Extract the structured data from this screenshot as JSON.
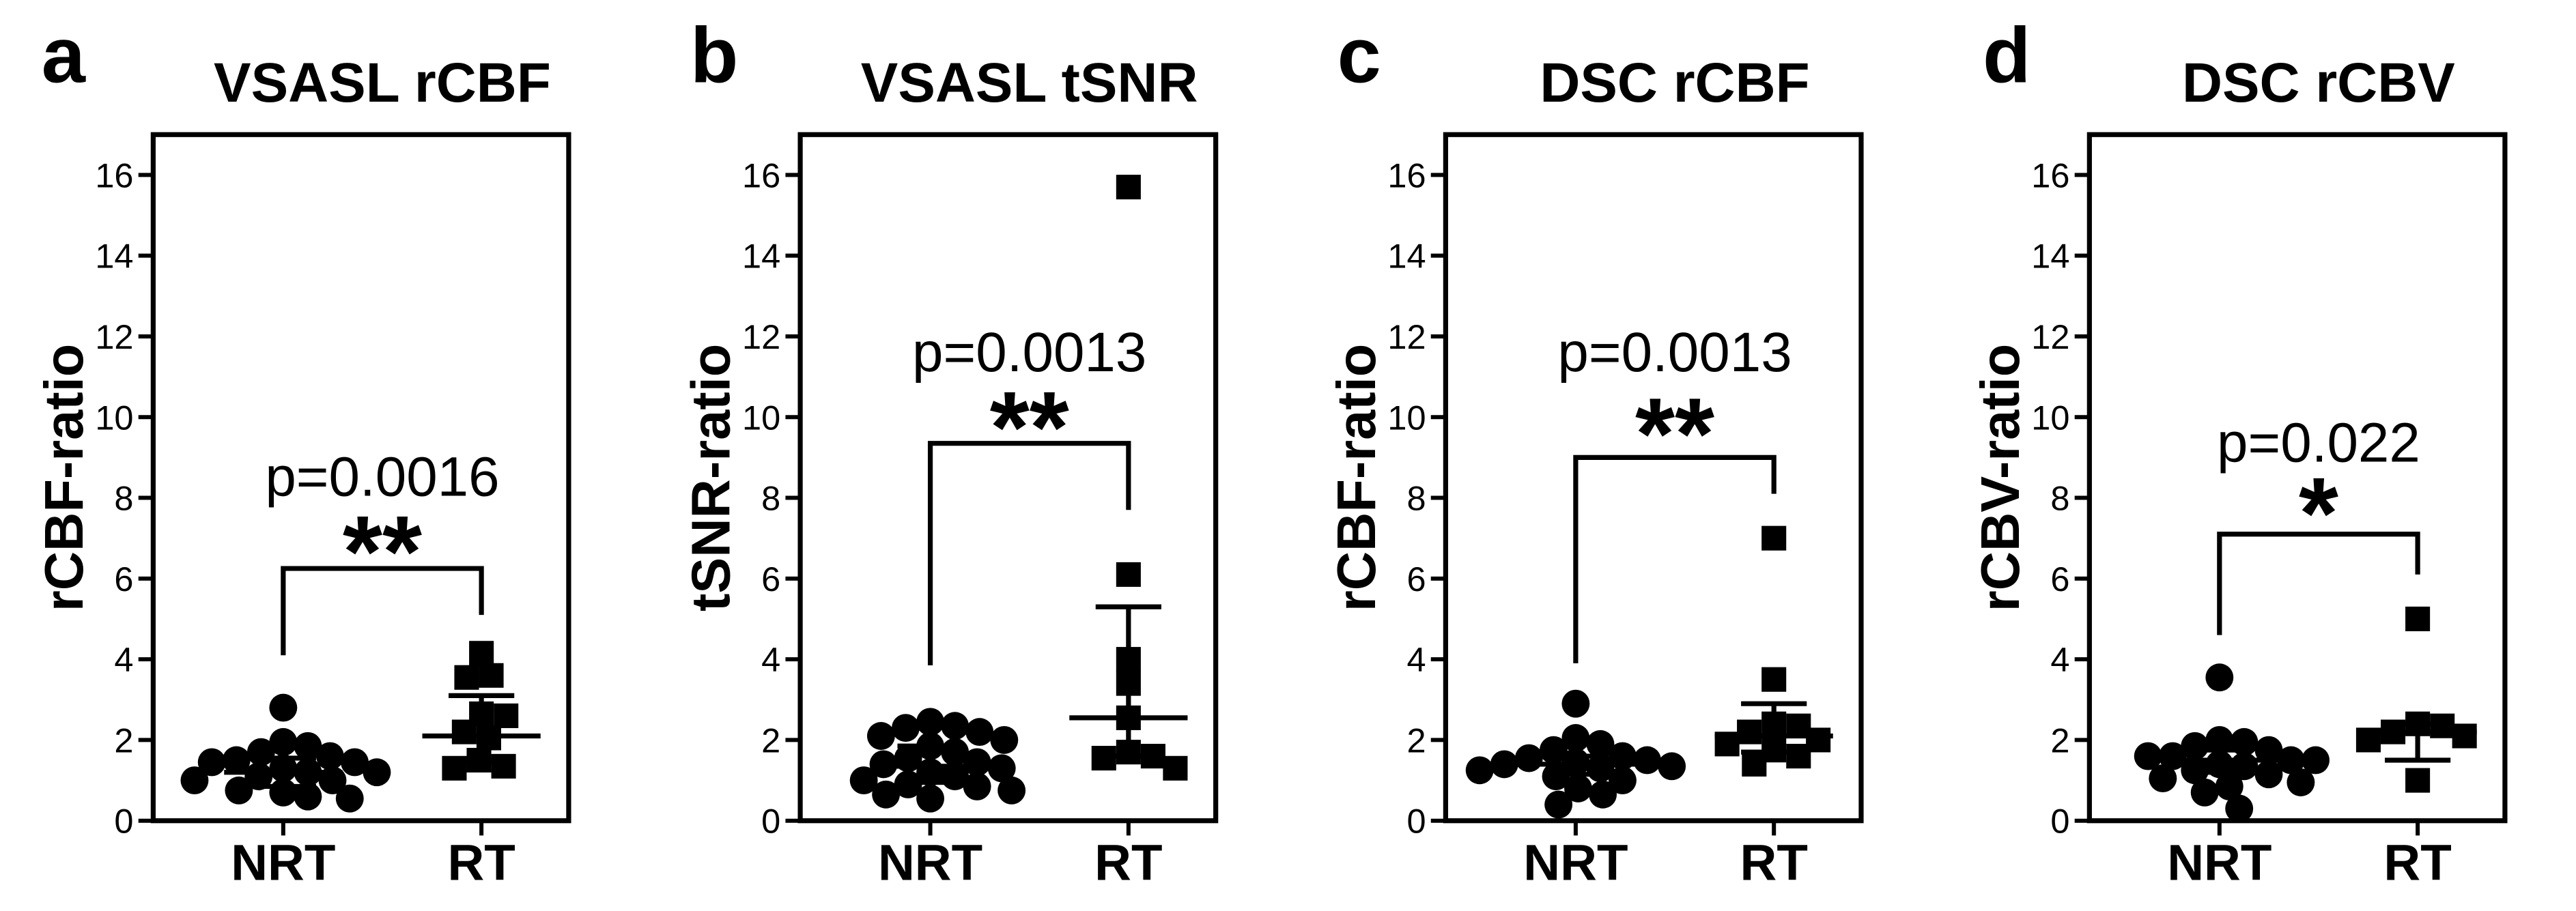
{
  "chart_data": [
    {
      "panel_label": "a",
      "type": "scatter",
      "title": "VSASL rCBF",
      "ylabel": "rCBF-ratio",
      "categories": [
        "NRT",
        "RT"
      ],
      "ylim": [
        0,
        17
      ],
      "yticks": [
        0,
        2,
        4,
        6,
        8,
        10,
        12,
        14,
        16
      ],
      "grid": false,
      "color": "#000000",
      "series": [
        {
          "marker": "circle",
          "values": [
            2.8,
            1.95,
            1.85,
            1.7,
            1.6,
            1.5,
            1.45,
            1.45,
            1.3,
            1.2,
            1.2,
            1.1,
            1.0,
            1.0,
            0.75,
            0.7,
            0.6,
            0.55
          ],
          "error_bar": {
            "center": 1.2,
            "low": 0.85,
            "high": 1.55
          }
        },
        {
          "marker": "square",
          "values": [
            4.15,
            3.6,
            3.55,
            2.65,
            2.6,
            2.2,
            2.05,
            1.5,
            1.35,
            1.3
          ],
          "error_bar": {
            "center": 2.1,
            "low": 1.45,
            "high": 3.1
          }
        }
      ],
      "annotation": {
        "p_value": "p=0.0016",
        "significance": "**"
      }
    },
    {
      "panel_label": "b",
      "type": "scatter",
      "title": "VSASL tSNR",
      "ylabel": "tSNR-ratio",
      "categories": [
        "NRT",
        "RT"
      ],
      "ylim": [
        0,
        17
      ],
      "yticks": [
        0,
        2,
        4,
        6,
        8,
        10,
        12,
        14,
        16
      ],
      "grid": false,
      "color": "#000000",
      "series": [
        {
          "marker": "circle",
          "values": [
            2.45,
            2.35,
            2.3,
            2.2,
            2.1,
            2.0,
            1.85,
            1.7,
            1.55,
            1.45,
            1.4,
            1.3,
            1.2,
            1.1,
            1.0,
            0.9,
            0.85,
            0.75,
            0.65,
            0.55
          ],
          "error_bar": {
            "center": 1.35,
            "low": 0.95,
            "high": 1.85
          }
        },
        {
          "marker": "square",
          "values": [
            15.7,
            6.1,
            4.0,
            3.4,
            2.55,
            1.7,
            1.6,
            1.55,
            1.3
          ],
          "error_bar": {
            "center": 2.55,
            "low": 1.6,
            "high": 5.3
          }
        }
      ],
      "annotation": {
        "p_value": "p=0.0013",
        "significance": "**"
      }
    },
    {
      "panel_label": "c",
      "type": "scatter",
      "title": "DSC rCBF",
      "ylabel": "rCBF-ratio",
      "categories": [
        "NRT",
        "RT"
      ],
      "ylim": [
        0,
        17
      ],
      "yticks": [
        0,
        2,
        4,
        6,
        8,
        10,
        12,
        14,
        16
      ],
      "grid": false,
      "color": "#000000",
      "series": [
        {
          "marker": "circle",
          "values": [
            2.9,
            2.05,
            1.9,
            1.75,
            1.6,
            1.55,
            1.5,
            1.45,
            1.4,
            1.35,
            1.3,
            1.25,
            1.1,
            1.0,
            0.8,
            0.65,
            0.4
          ],
          "error_bar": {
            "center": 1.4,
            "low": 1.15,
            "high": 1.6
          }
        },
        {
          "marker": "square",
          "values": [
            7.0,
            3.5,
            2.4,
            2.35,
            2.2,
            2.0,
            1.9,
            1.75,
            1.6,
            1.4
          ],
          "error_bar": {
            "center": 2.1,
            "low": 1.7,
            "high": 2.9
          }
        }
      ],
      "annotation": {
        "p_value": "p=0.0013",
        "significance": "**"
      }
    },
    {
      "panel_label": "d",
      "type": "scatter",
      "title": "DSC rCBV",
      "ylabel": "rCBV-ratio",
      "categories": [
        "NRT",
        "RT"
      ],
      "ylim": [
        0,
        17
      ],
      "yticks": [
        0,
        2,
        4,
        6,
        8,
        10,
        12,
        14,
        16
      ],
      "grid": false,
      "color": "#000000",
      "series": [
        {
          "marker": "circle",
          "values": [
            3.55,
            2.0,
            1.95,
            1.85,
            1.75,
            1.6,
            1.6,
            1.5,
            1.5,
            1.4,
            1.35,
            1.25,
            1.15,
            1.05,
            0.95,
            0.85,
            0.7,
            0.3
          ],
          "error_bar": {
            "center": 1.5,
            "low": 1.2,
            "high": 1.75
          }
        },
        {
          "marker": "square",
          "values": [
            5.0,
            2.4,
            2.35,
            2.2,
            2.1,
            2.0,
            1.0
          ],
          "error_bar": {
            "center": 2.2,
            "low": 1.5,
            "high": 2.4
          }
        }
      ],
      "annotation": {
        "p_value": "p=0.022",
        "significance": "*"
      }
    }
  ]
}
